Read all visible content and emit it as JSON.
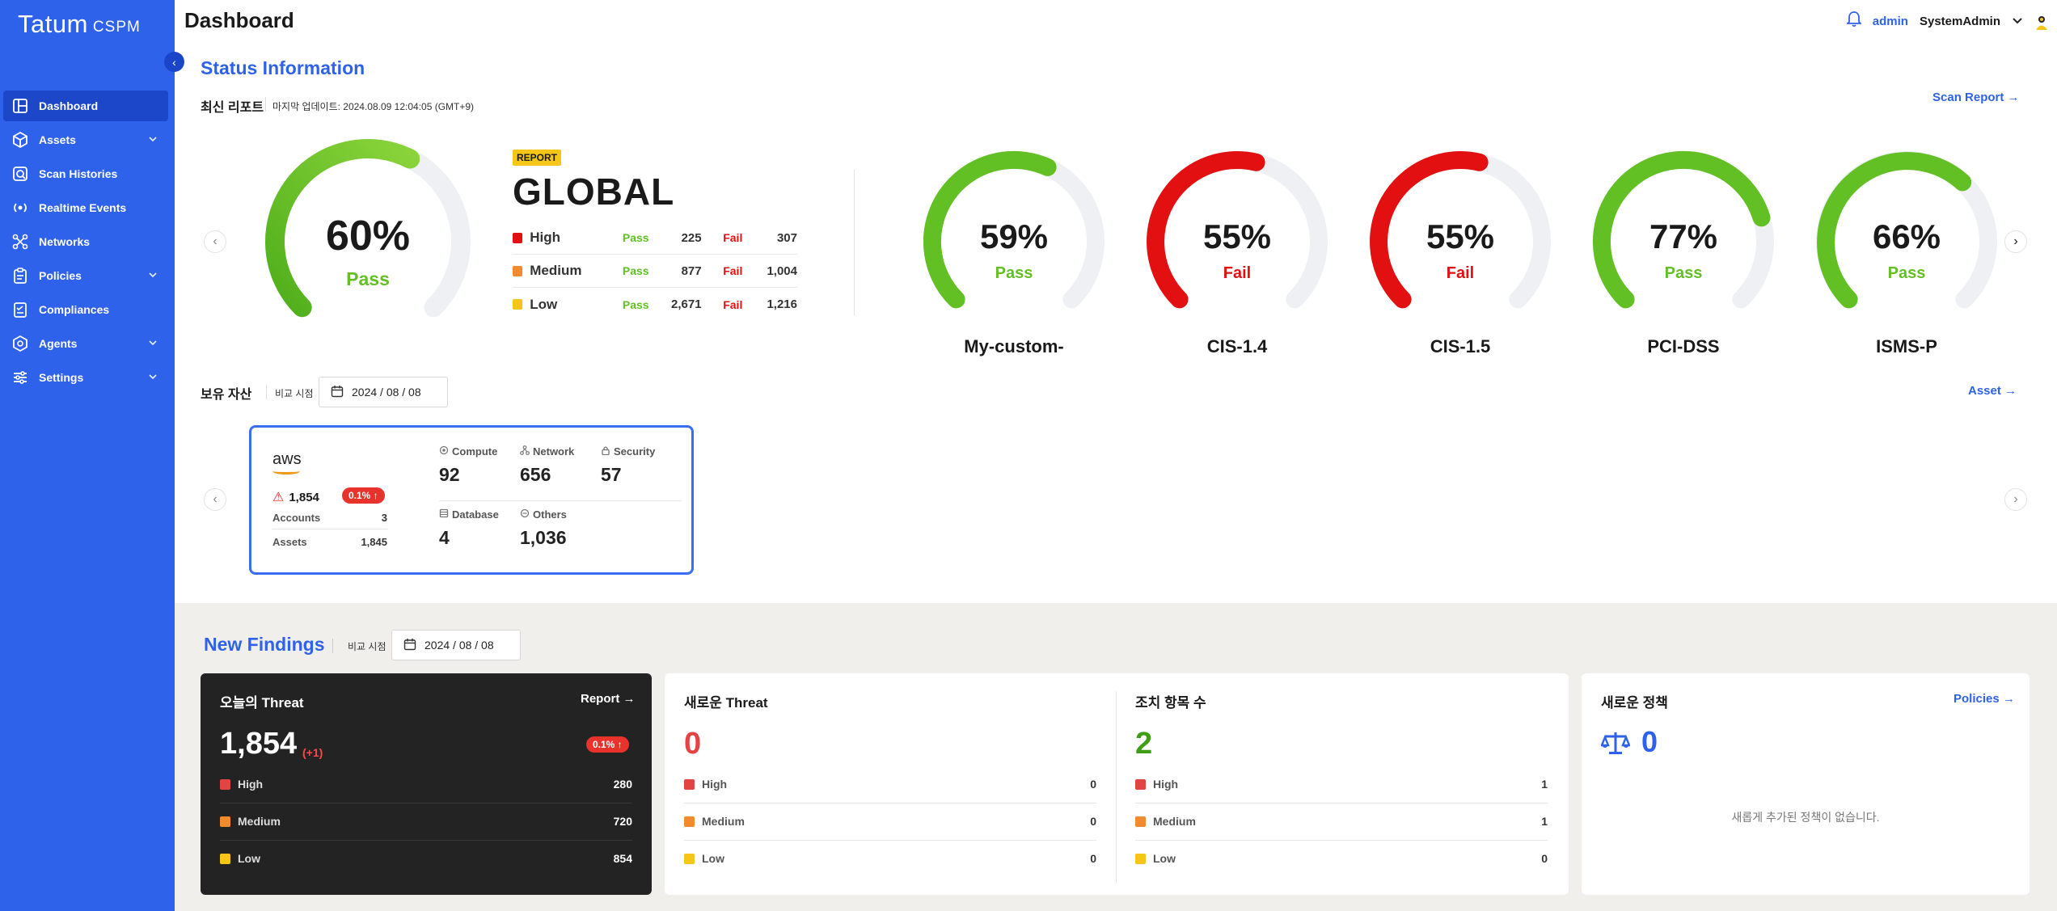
{
  "app": {
    "logo": "Tatum",
    "logo_sub": "CSPM",
    "page_title": "Dashboard"
  },
  "sidebar": {
    "items": [
      {
        "label": "Dashboard",
        "icon": "dashboard-icon",
        "active": true
      },
      {
        "label": "Assets",
        "icon": "cube-icon",
        "expandable": true
      },
      {
        "label": "Scan Histories",
        "icon": "scan-history-icon"
      },
      {
        "label": "Realtime Events",
        "icon": "broadcast-icon"
      },
      {
        "label": "Networks",
        "icon": "network-icon"
      },
      {
        "label": "Policies",
        "icon": "clipboard-icon",
        "expandable": true
      },
      {
        "label": "Compliances",
        "icon": "checklist-icon"
      },
      {
        "label": "Agents",
        "icon": "agent-icon",
        "expandable": true
      },
      {
        "label": "Settings",
        "icon": "sliders-icon",
        "expandable": true
      }
    ]
  },
  "header": {
    "role": "admin",
    "user": "SystemAdmin"
  },
  "status": {
    "title": "Status Information",
    "latest_report": "최신 리포트",
    "last_updated": "마지막 업데이트: 2024.08.09 12:04:05 (GMT+9)",
    "scan_report_link": "Scan Report",
    "global": {
      "badge": "REPORT",
      "title": "GLOBAL",
      "pct_value": 60,
      "pct": "60%",
      "state": "Pass",
      "pass_label": "Pass",
      "fail_label": "Fail",
      "rows": [
        {
          "name": "High",
          "color": "#e21010",
          "pass": "225",
          "fail": "307"
        },
        {
          "name": "Medium",
          "color": "#f28a2e",
          "pass": "877",
          "fail": "1,004"
        },
        {
          "name": "Low",
          "color": "#f5c518",
          "pass": "2,671",
          "fail": "1,216"
        }
      ]
    },
    "standards": [
      {
        "name": "My-custom-",
        "pct_value": 59,
        "pct": "59%",
        "state": "Pass"
      },
      {
        "name": "CIS-1.4",
        "pct_value": 55,
        "pct": "55%",
        "state": "Fail"
      },
      {
        "name": "CIS-1.5",
        "pct_value": 55,
        "pct": "55%",
        "state": "Fail"
      },
      {
        "name": "PCI-DSS",
        "pct_value": 77,
        "pct": "77%",
        "state": "Pass"
      },
      {
        "name": "ISMS-P",
        "pct_value": 66,
        "pct": "66%",
        "state": "Pass"
      }
    ]
  },
  "assets": {
    "title": "보유 자산",
    "compare_label": "비교 시점",
    "date": "2024 / 08 / 08",
    "asset_link": "Asset",
    "aws": {
      "logo": "aws",
      "threats": "1,854",
      "change": "0.1% ↑",
      "accounts_label": "Accounts",
      "accounts": "3",
      "assets_label": "Assets",
      "assets": "1,845",
      "metrics": [
        {
          "label": "Compute",
          "value": "92",
          "icon": "compute-icon"
        },
        {
          "label": "Network",
          "value": "656",
          "icon": "network-small-icon"
        },
        {
          "label": "Security",
          "value": "57",
          "icon": "lock-icon"
        },
        {
          "label": "Database",
          "value": "4",
          "icon": "database-icon"
        },
        {
          "label": "Others",
          "value": "1,036",
          "icon": "others-icon"
        }
      ]
    }
  },
  "findings": {
    "title": "New Findings",
    "compare_label": "비교 시점",
    "date": "2024 / 08 / 08",
    "today": {
      "title": "오늘의 Threat",
      "link": "Report",
      "value": "1,854",
      "delta": "(+1)",
      "change": "0.1% ↑",
      "rows": [
        {
          "name": "High",
          "value": "280"
        },
        {
          "name": "Medium",
          "value": "720"
        },
        {
          "name": "Low",
          "value": "854"
        }
      ]
    },
    "new_threat": {
      "title": "새로운 Threat",
      "value": "0",
      "rows": [
        {
          "name": "High",
          "value": "0"
        },
        {
          "name": "Medium",
          "value": "0"
        },
        {
          "name": "Low",
          "value": "0"
        }
      ]
    },
    "actions": {
      "title": "조치 항목 수",
      "value": "2",
      "rows": [
        {
          "name": "High",
          "value": "1"
        },
        {
          "name": "Medium",
          "value": "1"
        },
        {
          "name": "Low",
          "value": "0"
        }
      ]
    },
    "new_policy": {
      "title": "새로운 정책",
      "link": "Policies",
      "value": "0",
      "empty": "새롭게 추가된 정책이 없습니다."
    }
  },
  "colors": {
    "accent": "#2f62ea",
    "pass": "#62bf24",
    "fail": "#e21010",
    "high": "#e24444",
    "medium": "#f28a2e",
    "low": "#f5c518"
  }
}
